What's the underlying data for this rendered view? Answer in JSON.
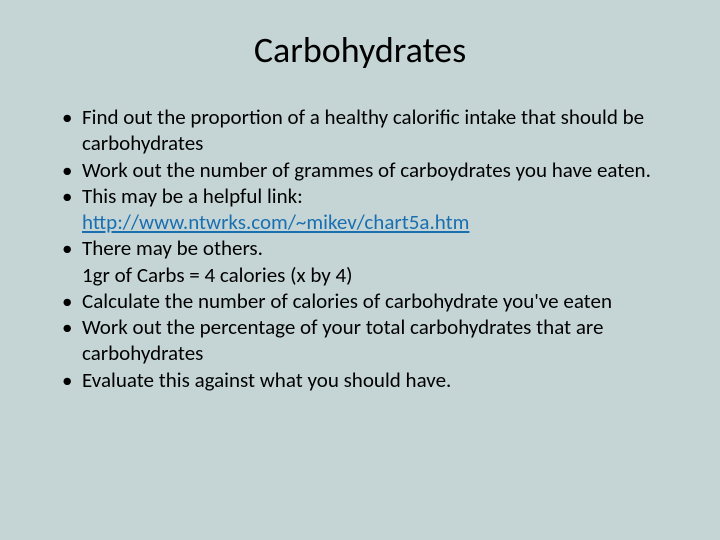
{
  "slide": {
    "title": "Carbohydrates",
    "background_color": "#c5d5d5",
    "title_fontsize": 36,
    "body_fontsize": 21,
    "text_color": "#000000",
    "link_color": "#1a6fb0",
    "bullets": [
      {
        "text": "Find out the proportion of a healthy calorific intake that should be carbohydrates"
      },
      {
        "text": "Work out the number of grammes of carboydrates you have eaten."
      },
      {
        "text": "This may be a helpful link:",
        "link": "http://www.ntwrks.com/~mikev/chart5a.htm"
      },
      {
        "text": "There may be others.",
        "sub": "1gr of Carbs = 4 calories (x by 4)"
      },
      {
        "text": "Calculate the number of calories of carbohydrate you've eaten"
      },
      {
        "text": "Work out the percentage of your total carbohydrates that are carbohydrates"
      },
      {
        "text": "Evaluate this against what you should have."
      }
    ]
  }
}
